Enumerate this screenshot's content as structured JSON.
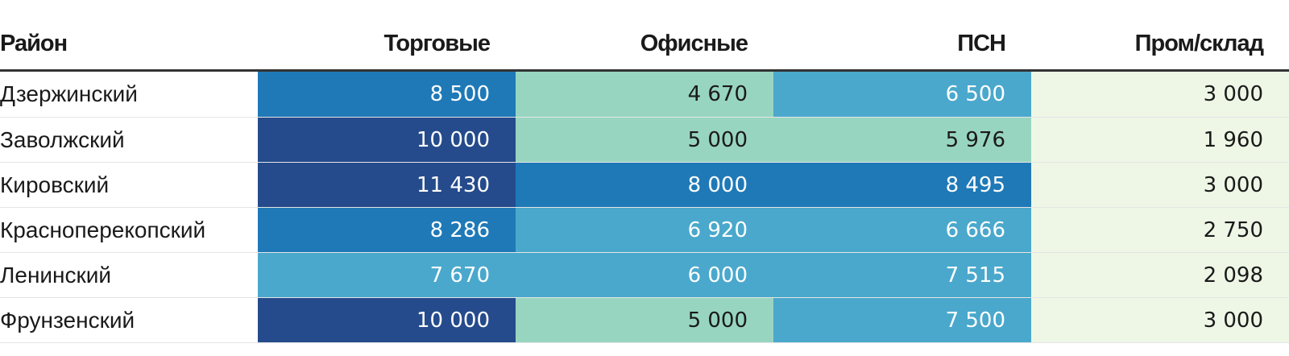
{
  "chart_data": {
    "type": "table",
    "columns": [
      "Район",
      "Торговые",
      "Офисные",
      "ПСН",
      "Пром/склад"
    ],
    "rows": [
      {
        "district": "Дзержинский",
        "cells": [
          "8 500",
          "4 670",
          "6 500",
          "3 000"
        ],
        "values": [
          8500,
          4670,
          6500,
          3000
        ]
      },
      {
        "district": "Заволжский",
        "cells": [
          "10 000",
          "5 000",
          "5 976",
          "1 960"
        ],
        "values": [
          10000,
          5000,
          5976,
          1960
        ]
      },
      {
        "district": "Кировский",
        "cells": [
          "11 430",
          "8 000",
          "8 495",
          "3 000"
        ],
        "values": [
          11430,
          8000,
          8495,
          3000
        ]
      },
      {
        "district": "Красноперекопский",
        "cells": [
          "8 286",
          "6 920",
          "6 666",
          "2 750"
        ],
        "values": [
          8286,
          6920,
          6666,
          2750
        ]
      },
      {
        "district": "Ленинский",
        "cells": [
          "7 670",
          "6 000",
          "7 515",
          "2 098"
        ],
        "values": [
          7670,
          6000,
          7515,
          2098
        ]
      },
      {
        "district": "Фрунзенский",
        "cells": [
          "10 000",
          "5 000",
          "7 500",
          "3 000"
        ],
        "values": [
          10000,
          5000,
          7500,
          3000
        ]
      }
    ],
    "color_scale": [
      {
        "min": 0,
        "max": 4000,
        "bg": "#eef7e6",
        "fg": "#1a1a1a"
      },
      {
        "min": 4000,
        "max": 6000,
        "bg": "#98d5c0",
        "fg": "#1a1a1a"
      },
      {
        "min": 6000,
        "max": 8000,
        "bg": "#4aa8cc",
        "fg": "#ffffff"
      },
      {
        "min": 8000,
        "max": 10000,
        "bg": "#1f79b7",
        "fg": "#ffffff"
      },
      {
        "min": 10000,
        "max": 99999,
        "bg": "#254b8c",
        "fg": "#ffffff"
      }
    ]
  }
}
